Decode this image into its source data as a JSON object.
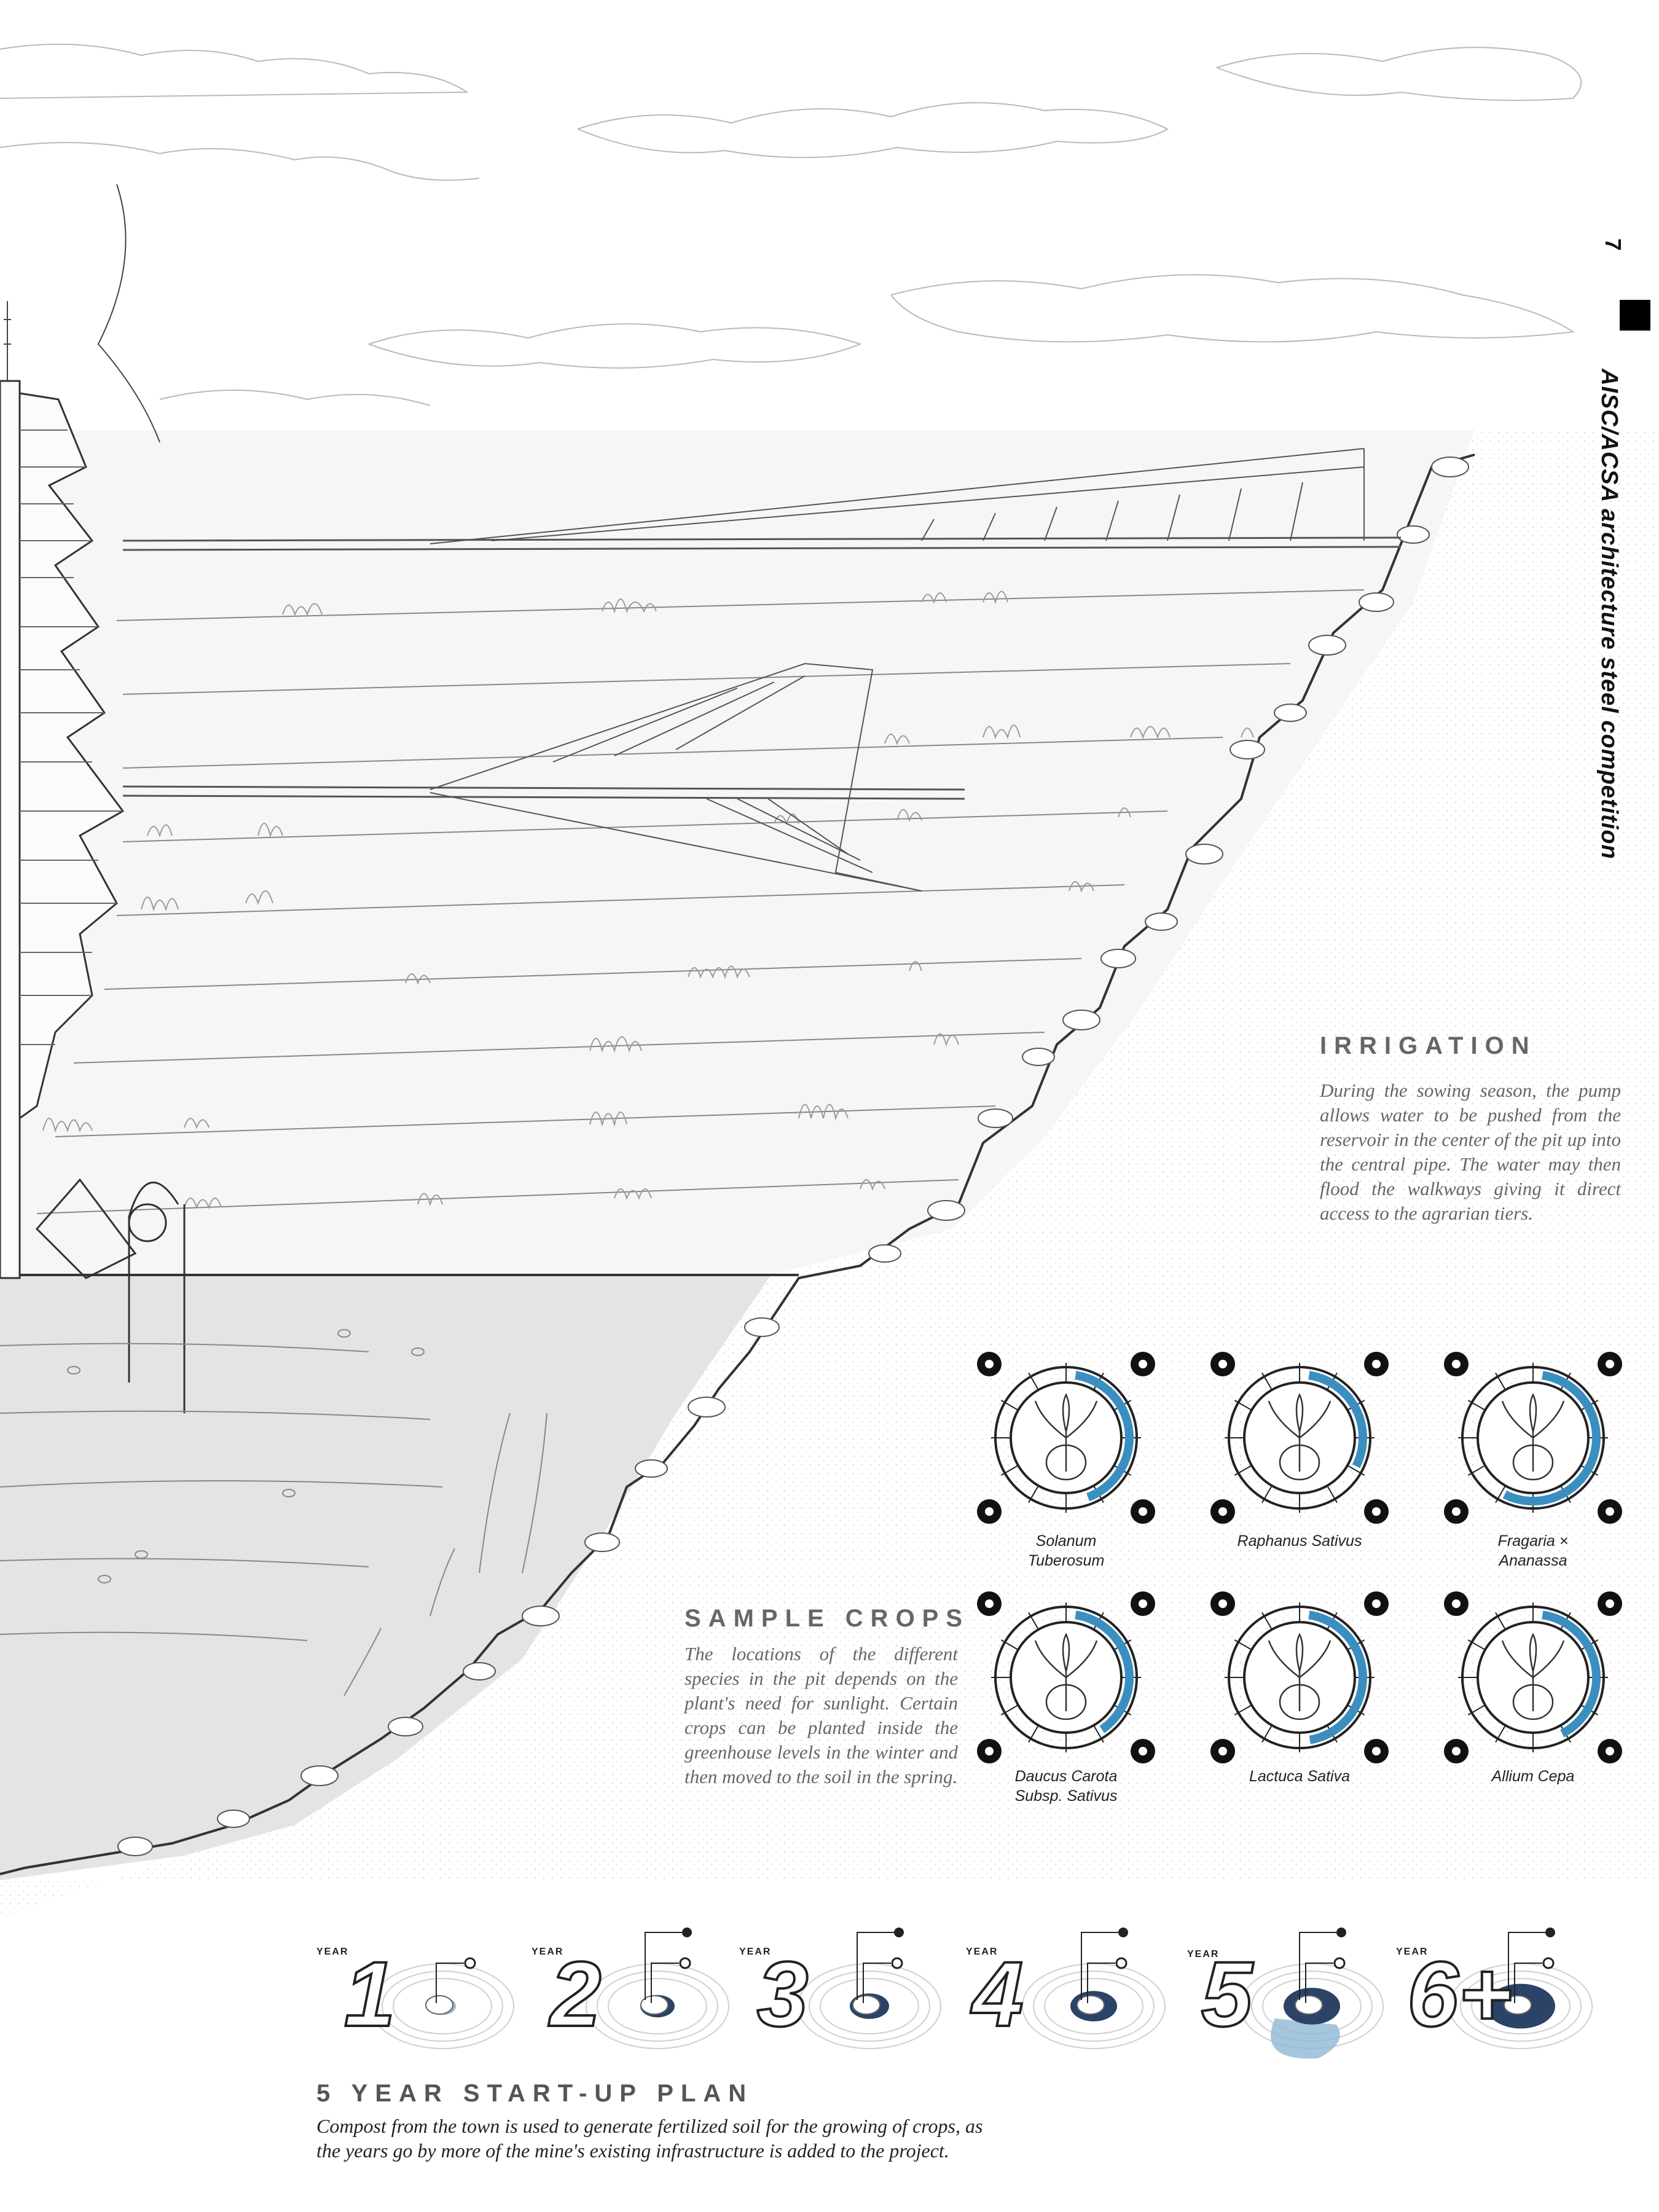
{
  "sidebar": {
    "page_number": "7",
    "competition_title": "AISC/ACSA architecture steel competition"
  },
  "irrigation": {
    "heading": "IRRIGATION",
    "body": "During the sowing season, the pump allows water to be pushed from the reservoir in the center of the pit up into the central pipe. The water may then flood the walkways giving it direct access to the agrarian tiers."
  },
  "sample_crops": {
    "heading": "SAMPLE CROPS",
    "body": "The locations of the different species in the pit depends on the plant's need for sunlight. Certain crops can be planted inside the greenhouse levels in the winter and then moved to the soil in the spring.",
    "crops": [
      {
        "name_line1": "Solanum",
        "name_line2": "Tuberosum",
        "ring_fill": 0.42
      },
      {
        "name_line1": "Raphanus Sativus",
        "name_line2": "",
        "ring_fill": 0.3
      },
      {
        "name_line1": "Fragaria ×",
        "name_line2": "Ananassa",
        "ring_fill": 0.55
      },
      {
        "name_line1": "Daucus Carota",
        "name_line2": "Subsp. Sativus",
        "ring_fill": 0.38
      },
      {
        "name_line1": "Lactuca Sativa",
        "name_line2": "",
        "ring_fill": 0.45
      },
      {
        "name_line1": "Allium Cepa",
        "name_line2": "",
        "ring_fill": 0.4
      }
    ]
  },
  "start_up_plan": {
    "heading": "5 YEAR START-UP PLAN",
    "body_line1": "Compost from the town is used to generate fertilized soil for the growing of crops, as",
    "body_line2": "the years go by more of the mine's existing infrastructure is added to the project.",
    "years": [
      {
        "label": "YEAR",
        "number": "1"
      },
      {
        "label": "YEAR",
        "number": "2"
      },
      {
        "label": "YEAR",
        "number": "3"
      },
      {
        "label": "YEAR",
        "number": "4"
      },
      {
        "label": "YEAR",
        "number": "5"
      },
      {
        "label": "YEAR",
        "number": "6+"
      }
    ]
  },
  "colors": {
    "accent_blue": "#3a8fc0",
    "dark_navy": "#2a4366",
    "light_blue": "#8fb8d4",
    "ground_gray": "#e6e6e6",
    "line_gray": "#8a8a8a"
  }
}
